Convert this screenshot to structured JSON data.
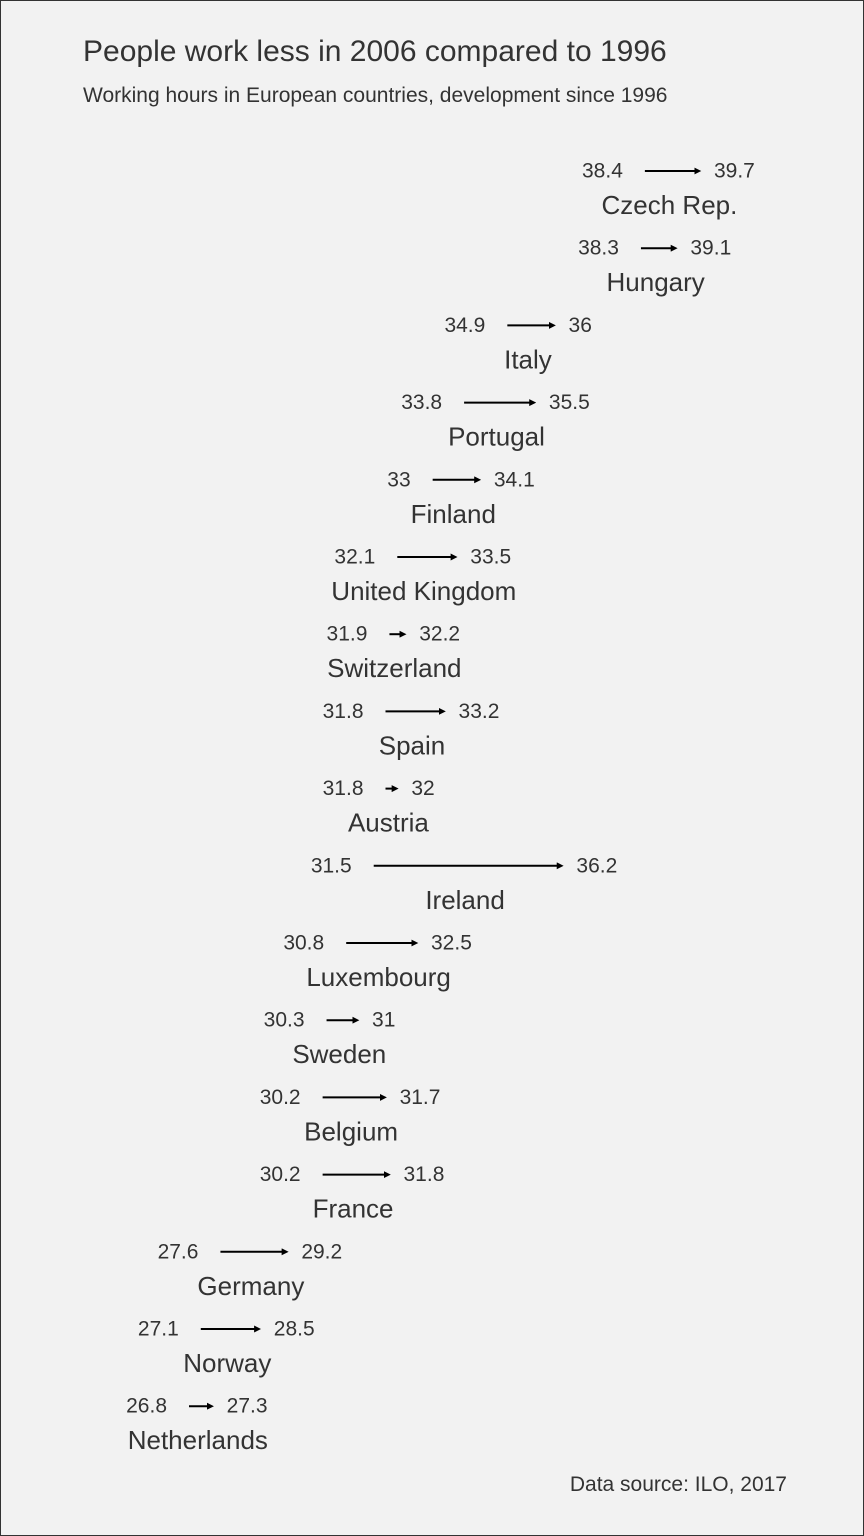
{
  "title": "People work less in 2006 compared to 1996",
  "subtitle": "Working hours in European countries, development since 1996",
  "caption": "Data source: ILO, 2017",
  "colors": {
    "background": "#f2f2f2",
    "text": "#333333",
    "arrow": "#000000"
  },
  "chart_data": {
    "type": "arrow",
    "legend": "none",
    "grid": false,
    "x_axis_visible": false,
    "series": [
      {
        "name": "1996",
        "role": "start"
      },
      {
        "name": "2006",
        "role": "end"
      }
    ],
    "rows": [
      {
        "country": "Czech Rep.",
        "start": "39.7",
        "end": "38.4"
      },
      {
        "country": "Hungary",
        "start": "39.1",
        "end": "38.3"
      },
      {
        "country": "Italy",
        "start": "36",
        "end": "34.9"
      },
      {
        "country": "Portugal",
        "start": "35.5",
        "end": "33.8"
      },
      {
        "country": "Finland",
        "start": "34.1",
        "end": "33"
      },
      {
        "country": "United Kingdom",
        "start": "33.5",
        "end": "32.1"
      },
      {
        "country": "Switzerland",
        "start": "32.2",
        "end": "31.9"
      },
      {
        "country": "Spain",
        "start": "33.2",
        "end": "31.8"
      },
      {
        "country": "Austria",
        "start": "32",
        "end": "31.8"
      },
      {
        "country": "Ireland",
        "start": "36.2",
        "end": "31.5"
      },
      {
        "country": "Luxembourg",
        "start": "32.5",
        "end": "30.8"
      },
      {
        "country": "Sweden",
        "start": "31",
        "end": "30.3"
      },
      {
        "country": "Belgium",
        "start": "31.7",
        "end": "30.2"
      },
      {
        "country": "France",
        "start": "31.8",
        "end": "30.2"
      },
      {
        "country": "Germany",
        "start": "29.2",
        "end": "27.6"
      },
      {
        "country": "Norway",
        "start": "28.5",
        "end": "27.1"
      },
      {
        "country": "Netherlands",
        "start": "27.3",
        "end": "26.8"
      }
    ]
  }
}
